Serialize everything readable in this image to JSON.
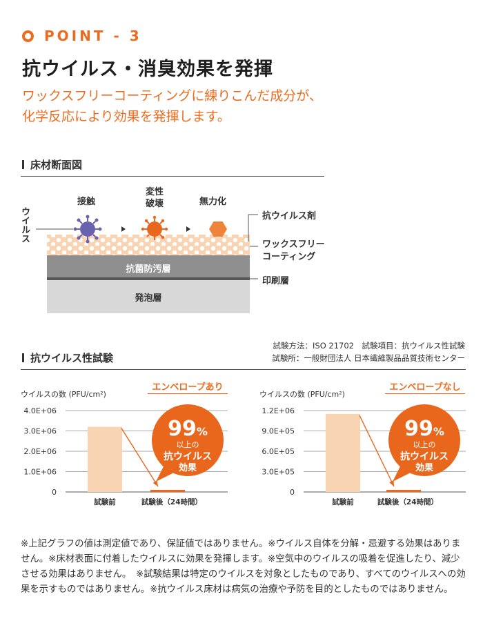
{
  "header": {
    "point_label": "POINT - 3",
    "title": "抗ウイルス・消臭効果を発揮",
    "lead_lines": [
      "ワックスフリーコーティングに練りこんだ成分が、",
      "化学反応により効果を発揮します。"
    ]
  },
  "cross_section": {
    "section_title": "床材断面図",
    "stages": [
      "接触",
      "変性",
      "破壊",
      "無力化"
    ],
    "virus_label": "ウイルス",
    "right_labels": {
      "agent": "抗ウイルス剤",
      "coating_line1": "ワックスフリー",
      "coating_line2": "コーティング",
      "print": "印刷層"
    },
    "layers": {
      "antibacterial": "抗菌防汚層",
      "foam": "発泡層"
    },
    "icons": [
      "virus-purple-icon",
      "virus-orange-icon",
      "hexagon-neutralized-icon"
    ]
  },
  "test": {
    "section_title": "抗ウイルス性試験",
    "method": "試験方法：ISO 21702　試験項目：抗ウイルス性試験",
    "institute": "試験所：一般財団法人 日本繊維製品品質技術センター"
  },
  "chart_data": [
    {
      "type": "bar",
      "ylabel": "ウイルスの数 (PFU/cm²)",
      "condition": "エンベロープあり",
      "categories": [
        "試験前",
        "試験後（24時間）"
      ],
      "values": [
        3200000,
        30000
      ],
      "ylim": [
        0,
        4000000
      ],
      "ticks": [
        "0",
        "1.0E+06",
        "2.0E+06",
        "3.0E+06",
        "4.0E+06"
      ],
      "tick_values": [
        0,
        1000000,
        2000000,
        3000000,
        4000000
      ],
      "grid": true,
      "badge": {
        "percent": "99",
        "unit": "%",
        "line1": "以上の",
        "line2": "抗ウイルス",
        "line3": "効果"
      },
      "colors": {
        "bar_before": "#f9d4b3",
        "bar_after": "#e9671d",
        "badge": "#e9671d"
      }
    },
    {
      "type": "bar",
      "ylabel": "ウイルスの数 (PFU/cm²)",
      "condition": "エンベロープなし",
      "categories": [
        "試験前",
        "試験後（24時間）"
      ],
      "values": [
        1150000,
        12000
      ],
      "ylim": [
        0,
        1200000
      ],
      "ticks": [
        "0",
        "3.0E+05",
        "6.0E+05",
        "9.0E+05",
        "1.2E+06"
      ],
      "tick_values": [
        0,
        300000,
        600000,
        900000,
        1200000
      ],
      "grid": true,
      "badge": {
        "percent": "99",
        "unit": "%",
        "line1": "以上の",
        "line2": "抗ウイルス",
        "line3": "効果"
      },
      "colors": {
        "bar_before": "#f9d4b3",
        "bar_after": "#e9671d",
        "badge": "#e9671d"
      }
    }
  ],
  "notes": "※上記グラフの値は測定値であり、保証値ではありません。※ウイルス自体を分解・忌避する効果はありません。※床材表面に付着したウイルスに効果を発揮します。※空気中のウイルスの吸着を促進したり、減少させる効果はありません。　※試験結果は特定のウイルスを対象としたものであり、すべてのウイルスへの効果を示すものではありません。※抗ウイルス床材は病気の治療や予防を目的としたものではありません。"
}
